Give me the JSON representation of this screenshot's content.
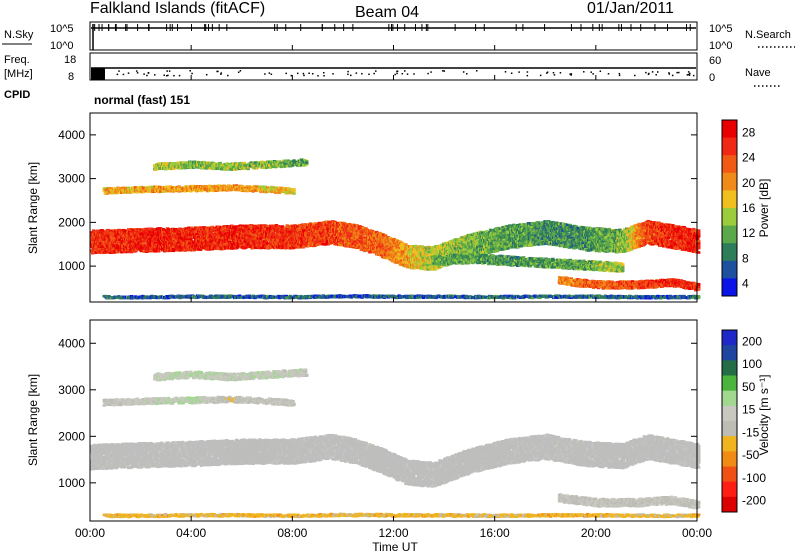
{
  "header": {
    "station": "Falkland Islands (fitACF)",
    "beam": "Beam 04",
    "date": "01/Jan/2011"
  },
  "small_panels": {
    "nsky_label": "N.Sky",
    "nsky_ticks": [
      "10^5",
      "10^0"
    ],
    "nsearch_label": "N.Search",
    "nsearch_ticks": [
      "10^5",
      "10^0"
    ],
    "freq_label_1": "Freq.",
    "freq_label_2": "[MHz]",
    "freq_ticks": [
      "18",
      "8"
    ],
    "nave_label": "Nave",
    "nave_ticks": [
      "60",
      "0"
    ],
    "cpid_label": "CPID",
    "cpid_value": "normal (fast) 151"
  },
  "colors": {
    "power_scale": [
      "#0a14e6",
      "#1e50a0",
      "#2e7d5a",
      "#5aa84a",
      "#9ccc3c",
      "#f0c020",
      "#f08a18",
      "#f05a14",
      "#f02814",
      "#e80000"
    ],
    "velocity_scale": [
      "#1e28c8",
      "#1e46a0",
      "#236e46",
      "#4ab43c",
      "#a0d890",
      "#c8c8c0",
      "#bdbdb6",
      "#f0b41e",
      "#f08c14",
      "#f05014",
      "#ff1e14",
      "#dc0000"
    ],
    "ground_scatter": "#bebebe",
    "frame": "#000000"
  },
  "chart_data": [
    {
      "type": "heatmap",
      "name": "power",
      "xlabel": "",
      "ylabel": "Slant Range [km]",
      "xlim": [
        0,
        24
      ],
      "ylim": [
        180,
        4500
      ],
      "y_ticks": [
        1000,
        2000,
        3000,
        4000
      ],
      "colorbar_label": "Power [dB]",
      "colorbar_ticks": [
        "28",
        "24",
        "20",
        "16",
        "12",
        "8",
        "4"
      ],
      "colorbar_range": [
        0,
        30
      ],
      "bands": [
        {
          "t": [
            0,
            2,
            4,
            6,
            8,
            9.5,
            10.5,
            11.5,
            12.5,
            13.5,
            15,
            16.5,
            18,
            19.5,
            21,
            22,
            23,
            24
          ],
          "r": [
            1580,
            1620,
            1650,
            1700,
            1700,
            1800,
            1700,
            1500,
            1250,
            1200,
            1500,
            1700,
            1800,
            1650,
            1600,
            1800,
            1700,
            1600
          ],
          "w": 520,
          "p": [
            25,
            26,
            26,
            26,
            25,
            24,
            23,
            22,
            18,
            14,
            12,
            10,
            9,
            9,
            12,
            24,
            26,
            27
          ]
        },
        {
          "t": [
            0.5,
            2,
            4,
            5.5,
            7,
            8
          ],
          "r": [
            2750,
            2780,
            2800,
            2820,
            2780,
            2740
          ],
          "w": 120,
          "p": [
            18,
            18,
            19,
            19,
            17,
            16
          ]
        },
        {
          "t": [
            2.5,
            4,
            5.5,
            7,
            8.5
          ],
          "r": [
            3300,
            3350,
            3300,
            3350,
            3400
          ],
          "w": 140,
          "p": [
            14,
            12,
            13,
            12,
            11
          ]
        },
        {
          "t": [
            13.5,
            15,
            16.5,
            18,
            19.5,
            21
          ],
          "r": [
            1150,
            1200,
            1150,
            1100,
            1050,
            1000
          ],
          "w": 200,
          "p": [
            11,
            10,
            9,
            10,
            11,
            13
          ]
        },
        {
          "t": [
            18.5,
            20,
            21.5,
            23,
            24
          ],
          "r": [
            700,
            600,
            600,
            650,
            550
          ],
          "w": 160,
          "p": [
            20,
            22,
            24,
            26,
            26
          ]
        },
        {
          "t": [
            0.5,
            2,
            4,
            6,
            8,
            10,
            12,
            14,
            16,
            18,
            20,
            22,
            24
          ],
          "r": [
            320,
            320,
            330,
            330,
            320,
            340,
            330,
            330,
            320,
            330,
            330,
            320,
            320
          ],
          "w": 50,
          "p": [
            6,
            5,
            6,
            5,
            6,
            5,
            6,
            5,
            6,
            5,
            6,
            5,
            6
          ]
        }
      ]
    },
    {
      "type": "heatmap",
      "name": "velocity",
      "xlabel": "Time UT",
      "ylabel": "Slant Range [km]",
      "xlim": [
        0,
        24
      ],
      "ylim": [
        180,
        4500
      ],
      "x_ticks": [
        "00:00",
        "04:00",
        "08:00",
        "12:00",
        "16:00",
        "20:00",
        "00:00"
      ],
      "y_ticks": [
        1000,
        2000,
        3000,
        4000
      ],
      "colorbar_label": "Velocity [m s⁻¹]",
      "colorbar_ticks": [
        "200",
        "100",
        "50",
        "15",
        "-15",
        "-50",
        "-100",
        "-200"
      ],
      "colorbar_range": [
        -250,
        250
      ],
      "bands": [
        {
          "t": [
            0,
            2,
            4,
            6,
            8,
            9.5,
            10.5,
            11.5,
            12.5,
            13.5,
            15,
            16.5,
            18,
            19.5,
            21,
            22,
            23,
            24
          ],
          "r": [
            1580,
            1620,
            1650,
            1700,
            1700,
            1800,
            1700,
            1500,
            1250,
            1200,
            1500,
            1700,
            1800,
            1650,
            1600,
            1800,
            1700,
            1600
          ],
          "w": 520,
          "v": [
            -5,
            0,
            0,
            -10,
            0,
            5,
            0,
            -5,
            0,
            0,
            -5,
            0,
            5,
            0,
            -5,
            0,
            0,
            0
          ]
        },
        {
          "t": [
            0.5,
            2,
            4,
            5.5,
            7,
            8
          ],
          "r": [
            2750,
            2780,
            2800,
            2820,
            2780,
            2740
          ],
          "w": 120,
          "v": [
            0,
            20,
            40,
            -20,
            10,
            0
          ]
        },
        {
          "t": [
            2.5,
            4,
            5.5,
            7,
            8.5
          ],
          "r": [
            3300,
            3350,
            3300,
            3350,
            3400
          ],
          "w": 140,
          "v": [
            30,
            40,
            20,
            30,
            10
          ]
        },
        {
          "t": [
            18.5,
            20,
            21.5,
            23,
            24
          ],
          "r": [
            700,
            600,
            600,
            650,
            550
          ],
          "w": 160,
          "v": [
            0,
            0,
            -5,
            0,
            0
          ]
        },
        {
          "t": [
            0.5,
            2,
            4,
            6,
            8,
            10,
            12,
            14,
            16,
            18,
            20,
            22,
            24
          ],
          "r": [
            320,
            320,
            330,
            330,
            320,
            340,
            330,
            330,
            320,
            330,
            330,
            320,
            320
          ],
          "w": 50,
          "v": [
            -60,
            -60,
            -50,
            -60,
            -70,
            -50,
            -60,
            -60,
            -50,
            -60,
            -60,
            -50,
            -60
          ]
        }
      ]
    }
  ]
}
